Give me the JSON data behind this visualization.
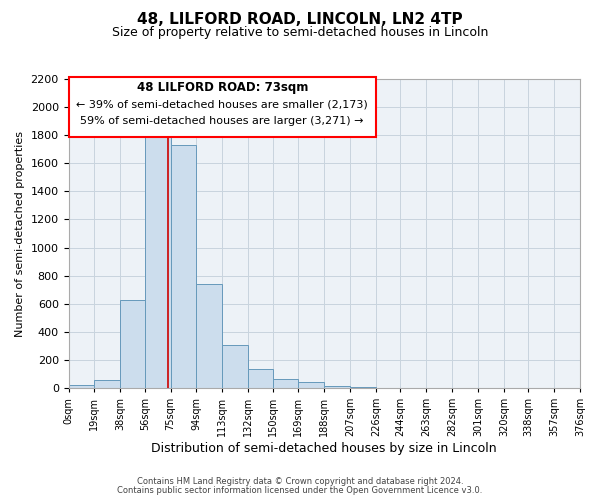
{
  "title": "48, LILFORD ROAD, LINCOLN, LN2 4TP",
  "subtitle": "Size of property relative to semi-detached houses in Lincoln",
  "xlabel": "Distribution of semi-detached houses by size in Lincoln",
  "ylabel": "Number of semi-detached properties",
  "bar_color": "#ccdded",
  "bar_edge_color": "#6699bb",
  "background_color": "#edf2f7",
  "grid_color": "#c8d4de",
  "vline_x": 73,
  "vline_color": "#cc0000",
  "annotation_title": "48 LILFORD ROAD: 73sqm",
  "annotation_line1": "← 39% of semi-detached houses are smaller (2,173)",
  "annotation_line2": "59% of semi-detached houses are larger (3,271) →",
  "bin_edges": [
    0,
    19,
    38,
    56,
    75,
    94,
    113,
    132,
    150,
    169,
    188,
    207,
    226,
    244,
    263,
    282,
    301,
    320,
    338,
    357,
    376
  ],
  "bin_counts": [
    20,
    60,
    630,
    1830,
    1730,
    740,
    305,
    135,
    65,
    40,
    15,
    5,
    0,
    0,
    0,
    0,
    0,
    0,
    0,
    0
  ],
  "tick_labels": [
    "0sqm",
    "19sqm",
    "38sqm",
    "56sqm",
    "75sqm",
    "94sqm",
    "113sqm",
    "132sqm",
    "150sqm",
    "169sqm",
    "188sqm",
    "207sqm",
    "226sqm",
    "244sqm",
    "263sqm",
    "282sqm",
    "301sqm",
    "320sqm",
    "338sqm",
    "357sqm",
    "376sqm"
  ],
  "ylim": [
    0,
    2200
  ],
  "yticks": [
    0,
    200,
    400,
    600,
    800,
    1000,
    1200,
    1400,
    1600,
    1800,
    2000,
    2200
  ],
  "footer1": "Contains HM Land Registry data © Crown copyright and database right 2024.",
  "footer2": "Contains public sector information licensed under the Open Government Licence v3.0."
}
